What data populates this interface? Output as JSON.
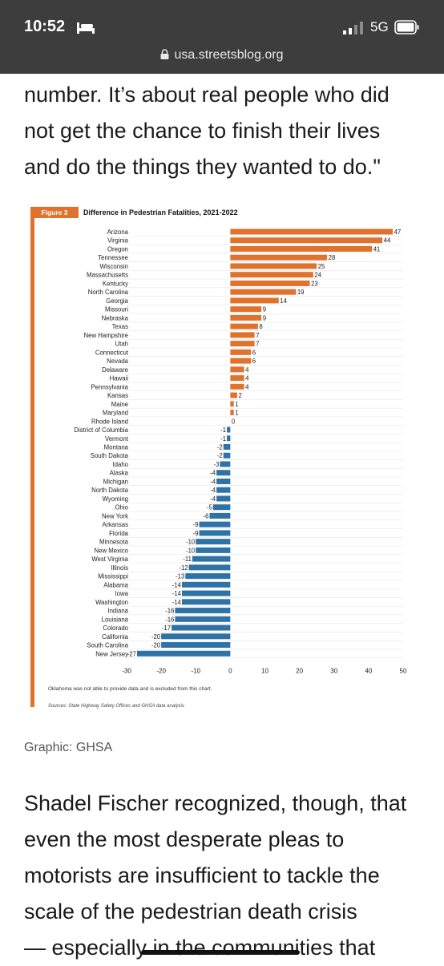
{
  "status_bar": {
    "time": "10:52",
    "network": "5G",
    "url": "usa.streetsblog.org"
  },
  "article": {
    "top_lines": [
      "number. It’s about real people who did",
      "not get the chance to finish their lives",
      "and do the things they wanted to do.\""
    ],
    "caption": "Graphic: GHSA",
    "bottom_lines": [
      "Shadel Fischer recognized, though, that",
      "even the most desperate pleas to",
      "motorists are insufficient to tackle the",
      "scale of the pedestrian death crisis",
      "— especially in the communities that"
    ]
  },
  "figure": {
    "badge": "Figure 3",
    "title": "Difference in Pedestrian Fatalities, 2021-2022",
    "note": "Oklahoma was not able to provide data and is excluded from this chart.",
    "source": "Sources: State Highway Safety Offices and GHSA data analysis"
  },
  "colors": {
    "positive": "#e0722d",
    "negative": "#2f72a6",
    "accent": "#e0722d",
    "status_bar": "#3d3d3d"
  },
  "chart_data": {
    "type": "bar",
    "orientation": "horizontal",
    "title": "Difference in Pedestrian Fatalities, 2021-2022",
    "xlim": [
      -30,
      50
    ],
    "xticks": [
      -30,
      -20,
      -10,
      0,
      10,
      20,
      30,
      40,
      50
    ],
    "grid": true,
    "categories": [
      "Arizona",
      "Virginia",
      "Oregon",
      "Tennessee",
      "Wisconsin",
      "Massachusetts",
      "Kentucky",
      "North Carolina",
      "Georgia",
      "Missouri",
      "Nebraska",
      "Texas",
      "New Hampshire",
      "Utah",
      "Connecticut",
      "Nevada",
      "Delaware",
      "Hawaii",
      "Pennsylvania",
      "Kansas",
      "Maine",
      "Maryland",
      "Rhode Island",
      "District of Columbia",
      "Vermont",
      "Montana",
      "South Dakota",
      "Idaho",
      "Alaska",
      "Michigan",
      "North Dakota",
      "Wyoming",
      "Ohio",
      "New York",
      "Arkansas",
      "Florida",
      "Minnesota",
      "New Mexico",
      "West Virginia",
      "Illinois",
      "Mississippi",
      "Alabama",
      "Iowa",
      "Washington",
      "Indiana",
      "Louisiana",
      "Colorado",
      "California",
      "South Carolina",
      "New Jersey"
    ],
    "values": [
      47,
      44,
      41,
      28,
      25,
      24,
      23,
      19,
      14,
      9,
      9,
      8,
      7,
      7,
      6,
      6,
      4,
      4,
      4,
      2,
      1,
      1,
      0,
      -1,
      -1,
      -2,
      -2,
      -3,
      -4,
      -4,
      -4,
      -4,
      -5,
      -6,
      -9,
      -9,
      -10,
      -10,
      -11,
      -12,
      -13,
      -14,
      -14,
      -14,
      -16,
      -16,
      -17,
      -20,
      -20,
      -27
    ]
  }
}
